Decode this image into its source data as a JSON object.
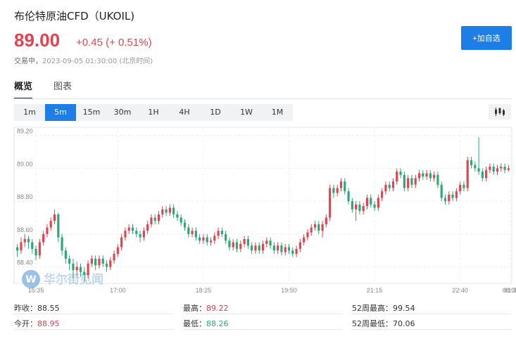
{
  "header": {
    "title": "布伦特原油CFD（UKOIL)",
    "price": "89.00",
    "change": "+0.45 (+ 0.51%)",
    "status": "交易中，",
    "timestamp": "2023-09-05 01:30:00 (北京时间)",
    "watch_button": "+加自选"
  },
  "tabs": [
    {
      "label": "概览",
      "active": true
    },
    {
      "label": "图表",
      "active": false
    }
  ],
  "periods": [
    {
      "label": "1m",
      "active": false
    },
    {
      "label": "5m",
      "active": true
    },
    {
      "label": "15m",
      "active": false
    },
    {
      "label": "30m",
      "active": false
    },
    {
      "label": "1H",
      "active": false
    },
    {
      "label": "4H",
      "active": false
    },
    {
      "label": "1D",
      "active": false
    },
    {
      "label": "1W",
      "active": false
    },
    {
      "label": "1M",
      "active": false
    }
  ],
  "chart_type_icon": "candlestick-icon",
  "watermark": "华尔街见闻",
  "colors": {
    "up": "#e2434e",
    "down": "#2aa876",
    "accent": "#1e7ee8"
  },
  "chart_data": {
    "type": "candlestick",
    "ylim": [
      88.3,
      89.25
    ],
    "y_ticks": [
      "89.20",
      "89.00",
      "88.80",
      "88.60",
      "88.40"
    ],
    "y_tick_values": [
      89.2,
      89.0,
      88.8,
      88.6,
      88.4
    ],
    "x_ticks": [
      "15:35",
      "17:00",
      "18:25",
      "19:50",
      "21:15",
      "22:40",
      "00:05",
      "01:3"
    ],
    "x_tick_index": [
      5,
      27,
      50,
      73,
      96,
      119,
      142,
      161
    ],
    "candles": [
      [
        88.52,
        88.5,
        88.54,
        88.46
      ],
      [
        88.5,
        88.55,
        88.58,
        88.48
      ],
      [
        88.55,
        88.57,
        88.6,
        88.52
      ],
      [
        88.57,
        88.55,
        88.59,
        88.51
      ],
      [
        88.55,
        88.51,
        88.57,
        88.48
      ],
      [
        88.51,
        88.47,
        88.53,
        88.44
      ],
      [
        88.47,
        88.55,
        88.57,
        88.45
      ],
      [
        88.55,
        88.6,
        88.62,
        88.53
      ],
      [
        88.6,
        88.64,
        88.66,
        88.58
      ],
      [
        88.64,
        88.68,
        88.7,
        88.62
      ],
      [
        88.68,
        88.72,
        88.75,
        88.66
      ],
      [
        88.72,
        88.58,
        88.73,
        88.55
      ],
      [
        88.58,
        88.5,
        88.6,
        88.47
      ],
      [
        88.5,
        88.45,
        88.52,
        88.42
      ],
      [
        88.45,
        88.42,
        88.47,
        88.38
      ],
      [
        88.42,
        88.38,
        88.45,
        88.33
      ],
      [
        88.38,
        88.4,
        88.43,
        88.34
      ],
      [
        88.4,
        88.37,
        88.42,
        88.34
      ],
      [
        88.37,
        88.35,
        88.4,
        88.31
      ],
      [
        88.35,
        88.42,
        88.44,
        88.33
      ],
      [
        88.42,
        88.45,
        88.47,
        88.4
      ],
      [
        88.45,
        88.41,
        88.47,
        88.38
      ],
      [
        88.41,
        88.45,
        88.47,
        88.39
      ],
      [
        88.45,
        88.42,
        88.47,
        88.4
      ],
      [
        88.42,
        88.4,
        88.44,
        88.37
      ],
      [
        88.4,
        88.44,
        88.46,
        88.38
      ],
      [
        88.44,
        88.48,
        88.5,
        88.42
      ],
      [
        88.48,
        88.52,
        88.54,
        88.46
      ],
      [
        88.52,
        88.58,
        88.6,
        88.5
      ],
      [
        88.58,
        88.62,
        88.64,
        88.56
      ],
      [
        88.62,
        88.64,
        88.66,
        88.6
      ],
      [
        88.64,
        88.62,
        88.66,
        88.6
      ],
      [
        88.62,
        88.6,
        88.64,
        88.58
      ],
      [
        88.6,
        88.58,
        88.62,
        88.55
      ],
      [
        88.58,
        88.62,
        88.64,
        88.56
      ],
      [
        88.62,
        88.66,
        88.68,
        88.6
      ],
      [
        88.66,
        88.7,
        88.72,
        88.64
      ],
      [
        88.7,
        88.68,
        88.72,
        88.66
      ],
      [
        88.68,
        88.72,
        88.74,
        88.66
      ],
      [
        88.72,
        88.75,
        88.77,
        88.7
      ],
      [
        88.75,
        88.73,
        88.77,
        88.71
      ],
      [
        88.73,
        88.76,
        88.78,
        88.71
      ],
      [
        88.76,
        88.72,
        88.78,
        88.7
      ],
      [
        88.72,
        88.7,
        88.74,
        88.68
      ],
      [
        88.7,
        88.67,
        88.72,
        88.65
      ],
      [
        88.67,
        88.64,
        88.69,
        88.62
      ],
      [
        88.64,
        88.6,
        88.66,
        88.58
      ],
      [
        88.6,
        88.62,
        88.64,
        88.58
      ],
      [
        88.62,
        88.58,
        88.64,
        88.56
      ],
      [
        88.58,
        88.56,
        88.6,
        88.54
      ],
      [
        88.56,
        88.58,
        88.6,
        88.54
      ],
      [
        88.58,
        88.55,
        88.6,
        88.53
      ],
      [
        88.55,
        88.56,
        88.58,
        88.53
      ],
      [
        88.56,
        88.59,
        88.61,
        88.54
      ],
      [
        88.59,
        88.62,
        88.64,
        88.57
      ],
      [
        88.62,
        88.6,
        88.64,
        88.58
      ],
      [
        88.6,
        88.56,
        88.62,
        88.54
      ],
      [
        88.56,
        88.52,
        88.58,
        88.5
      ],
      [
        88.52,
        88.55,
        88.57,
        88.5
      ],
      [
        88.55,
        88.51,
        88.57,
        88.49
      ],
      [
        88.51,
        88.54,
        88.56,
        88.49
      ],
      [
        88.54,
        88.57,
        88.59,
        88.52
      ],
      [
        88.57,
        88.53,
        88.59,
        88.51
      ],
      [
        88.53,
        88.5,
        88.55,
        88.48
      ],
      [
        88.5,
        88.53,
        88.55,
        88.48
      ],
      [
        88.53,
        88.5,
        88.55,
        88.48
      ],
      [
        88.5,
        88.54,
        88.56,
        88.48
      ],
      [
        88.54,
        88.56,
        88.58,
        88.52
      ],
      [
        88.56,
        88.53,
        88.58,
        88.51
      ],
      [
        88.53,
        88.5,
        88.55,
        88.48
      ],
      [
        88.5,
        88.53,
        88.55,
        88.48
      ],
      [
        88.53,
        88.49,
        88.55,
        88.47
      ],
      [
        88.49,
        88.52,
        88.54,
        88.47
      ],
      [
        88.52,
        88.5,
        88.54,
        88.48
      ],
      [
        88.5,
        88.48,
        88.52,
        88.46
      ],
      [
        88.48,
        88.51,
        88.53,
        88.46
      ],
      [
        88.51,
        88.55,
        88.57,
        88.49
      ],
      [
        88.55,
        88.58,
        88.6,
        88.53
      ],
      [
        88.58,
        88.61,
        88.63,
        88.56
      ],
      [
        88.61,
        88.64,
        88.66,
        88.59
      ],
      [
        88.64,
        88.66,
        88.68,
        88.62
      ],
      [
        88.66,
        88.62,
        88.68,
        88.6
      ],
      [
        88.62,
        88.66,
        88.68,
        88.58
      ],
      [
        88.66,
        88.7,
        88.72,
        88.64
      ],
      [
        88.7,
        88.88,
        88.9,
        88.68
      ],
      [
        88.88,
        88.85,
        88.9,
        88.82
      ],
      [
        88.85,
        88.88,
        88.9,
        88.83
      ],
      [
        88.88,
        88.92,
        88.94,
        88.86
      ],
      [
        88.92,
        88.86,
        88.94,
        88.84
      ],
      [
        88.86,
        88.8,
        88.88,
        88.78
      ],
      [
        88.8,
        88.75,
        88.82,
        88.73
      ],
      [
        88.75,
        88.78,
        88.8,
        88.68
      ],
      [
        88.78,
        88.74,
        88.8,
        88.72
      ],
      [
        88.74,
        88.77,
        88.79,
        88.72
      ],
      [
        88.77,
        88.82,
        88.84,
        88.75
      ],
      [
        88.82,
        88.78,
        88.84,
        88.76
      ],
      [
        88.78,
        88.76,
        88.8,
        88.74
      ],
      [
        88.76,
        88.82,
        88.84,
        88.74
      ],
      [
        88.82,
        88.86,
        88.88,
        88.8
      ],
      [
        88.86,
        88.9,
        88.92,
        88.84
      ],
      [
        88.9,
        88.88,
        88.92,
        88.86
      ],
      [
        88.88,
        88.92,
        88.94,
        88.86
      ],
      [
        88.92,
        88.98,
        89.0,
        88.9
      ],
      [
        88.98,
        88.96,
        89.0,
        88.94
      ],
      [
        88.96,
        88.88,
        88.98,
        88.86
      ],
      [
        88.88,
        88.94,
        88.96,
        88.86
      ],
      [
        88.94,
        88.9,
        88.96,
        88.88
      ],
      [
        88.9,
        88.94,
        88.96,
        88.88
      ],
      [
        88.94,
        88.97,
        88.99,
        88.92
      ],
      [
        88.97,
        88.95,
        88.99,
        88.93
      ],
      [
        88.95,
        88.97,
        88.99,
        88.93
      ],
      [
        88.97,
        88.94,
        88.99,
        88.92
      ],
      [
        88.94,
        88.96,
        88.98,
        88.92
      ],
      [
        88.96,
        88.9,
        88.98,
        88.88
      ],
      [
        88.9,
        88.82,
        88.92,
        88.8
      ],
      [
        88.82,
        88.8,
        88.84,
        88.78
      ],
      [
        88.8,
        88.84,
        88.86,
        88.78
      ],
      [
        88.84,
        88.82,
        88.86,
        88.8
      ],
      [
        88.82,
        88.86,
        88.88,
        88.8
      ],
      [
        88.86,
        88.9,
        88.92,
        88.84
      ],
      [
        88.9,
        88.88,
        88.92,
        88.86
      ],
      [
        88.88,
        89.05,
        89.07,
        88.86
      ],
      [
        89.05,
        89.02,
        89.07,
        89.0
      ],
      [
        89.02,
        89.0,
        89.04,
        88.98
      ],
      [
        89.0,
        88.98,
        89.19,
        88.96
      ],
      [
        88.98,
        88.94,
        89.0,
        88.92
      ],
      [
        88.94,
        88.99,
        89.01,
        88.92
      ],
      [
        88.99,
        89.01,
        89.03,
        88.97
      ],
      [
        89.01,
        88.98,
        89.03,
        88.96
      ],
      [
        88.98,
        89.0,
        89.02,
        88.96
      ],
      [
        89.0,
        89.01,
        89.03,
        88.98
      ],
      [
        89.01,
        88.99,
        89.03,
        88.97
      ],
      [
        88.99,
        89.0,
        89.02,
        88.98
      ]
    ]
  },
  "stats": [
    [
      {
        "label": "昨收：",
        "value": "88.55",
        "cls": ""
      },
      {
        "label": "最高：",
        "value": "89.22",
        "cls": "up"
      },
      {
        "label": "52周最高：",
        "value": "99.54",
        "cls": ""
      }
    ],
    [
      {
        "label": "今开：",
        "value": "88.95",
        "cls": "up"
      },
      {
        "label": "最低：",
        "value": "88.26",
        "cls": "down"
      },
      {
        "label": "52周最低：",
        "value": "70.06",
        "cls": ""
      }
    ]
  ]
}
